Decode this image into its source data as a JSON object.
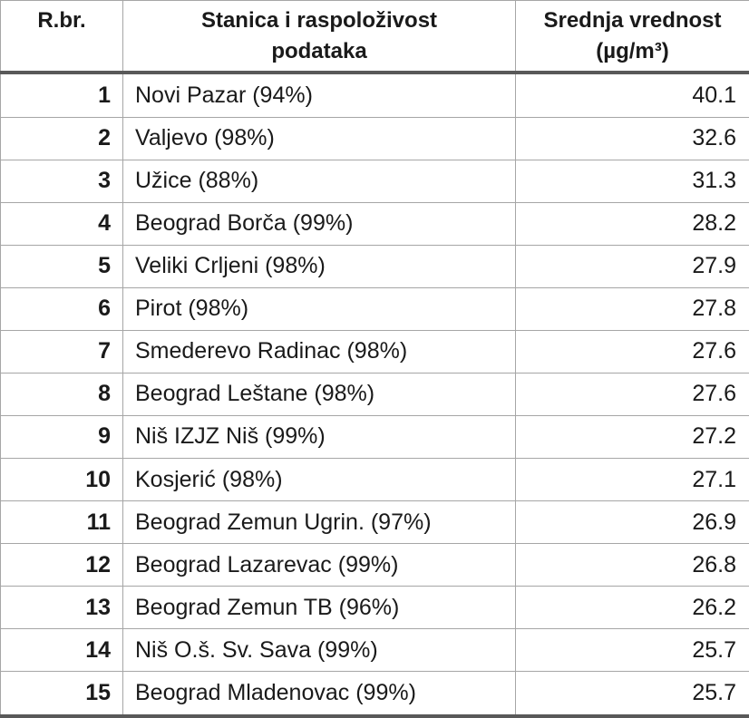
{
  "chart_data": {
    "type": "table",
    "title": "",
    "value_unit": "µg/m³",
    "columns": [
      {
        "id": "rank",
        "label_lines": [
          "R.br.",
          ""
        ]
      },
      {
        "id": "station",
        "label_lines": [
          "Stanica i raspoloživost",
          "podataka"
        ]
      },
      {
        "id": "value",
        "label_lines": [
          "Srednja vrednost",
          "(µg/m³)"
        ]
      }
    ],
    "rows": [
      {
        "rank": "1",
        "station": "Novi Pazar (94%)",
        "value": "40.1"
      },
      {
        "rank": "2",
        "station": "Valjevo (98%)",
        "value": "32.6"
      },
      {
        "rank": "3",
        "station": "Užice (88%)",
        "value": "31.3"
      },
      {
        "rank": "4",
        "station": "Beograd Borča (99%)",
        "value": "28.2"
      },
      {
        "rank": "5",
        "station": "Veliki Crljeni (98%)",
        "value": "27.9"
      },
      {
        "rank": "6",
        "station": "Pirot (98%)",
        "value": "27.8"
      },
      {
        "rank": "7",
        "station": "Smederevo Radinac (98%)",
        "value": "27.6"
      },
      {
        "rank": "8",
        "station": "Beograd Leštane (98%)",
        "value": "27.6"
      },
      {
        "rank": "9",
        "station": "Niš IZJZ Niš (99%)",
        "value": "27.2"
      },
      {
        "rank": "10",
        "station": "Kosjerić (98%)",
        "value": "27.1"
      },
      {
        "rank": "11",
        "station": "Beograd Zemun Ugrin. (97%)",
        "value": "26.9"
      },
      {
        "rank": "12",
        "station": "Beograd Lazarevac (99%)",
        "value": "26.8"
      },
      {
        "rank": "13",
        "station": "Beograd Zemun TB (96%)",
        "value": "26.2"
      },
      {
        "rank": "14",
        "station": "Niš O.š. Sv. Sava (99%)",
        "value": "25.7"
      },
      {
        "rank": "15",
        "station": "Beograd Mladenovac (99%)",
        "value": "25.7"
      }
    ]
  },
  "colors": {
    "thick_border": "#595959",
    "thin_border": "#a6a6a6",
    "text": "#1a1a1a",
    "background": "#ffffff"
  }
}
